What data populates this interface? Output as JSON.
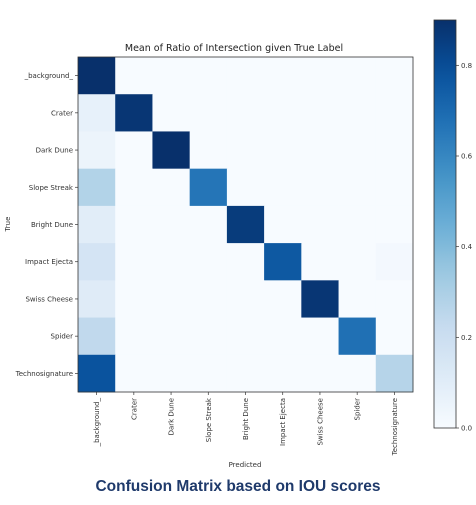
{
  "caption": "Confusion Matrix based on IOU scores",
  "chart_data": {
    "type": "heatmap",
    "title": "Mean of Ratio of Intersection given True Label",
    "xlabel": "Predicted",
    "ylabel": "True",
    "labels": [
      "_background_",
      "Crater",
      "Dark Dune",
      "Slope Streak",
      "Bright Dune",
      "Impact Ejecta",
      "Swiss Cheese",
      "Spider",
      "Technosignature"
    ],
    "matrix": [
      [
        0.92,
        0,
        0,
        0,
        0,
        0,
        0,
        0,
        0
      ],
      [
        0.07,
        0.88,
        0,
        0,
        0,
        0,
        0,
        0,
        0
      ],
      [
        0.05,
        0,
        0.93,
        0,
        0,
        0,
        0,
        0,
        0
      ],
      [
        0.28,
        0,
        0,
        0.66,
        0,
        0,
        0,
        0,
        0
      ],
      [
        0.1,
        0,
        0,
        0,
        0.86,
        0,
        0,
        0,
        0
      ],
      [
        0.16,
        0,
        0,
        0,
        0,
        0.76,
        0,
        0,
        0.02
      ],
      [
        0.11,
        0,
        0,
        0,
        0,
        0,
        0.88,
        0,
        0
      ],
      [
        0.24,
        0,
        0,
        0,
        0,
        0,
        0,
        0.68,
        0
      ],
      [
        0.78,
        0,
        0,
        0,
        0,
        0,
        0,
        0,
        0.27
      ]
    ],
    "colorbar": {
      "min": 0.0,
      "max": 0.9,
      "ticks": [
        0.0,
        0.2,
        0.4,
        0.6,
        0.8
      ],
      "tick_labels": [
        "0.0",
        "0.2",
        "0.4",
        "0.6",
        "0.8"
      ]
    },
    "colormap": [
      "#f7fbff",
      "#deebf7",
      "#c6dbef",
      "#9ecae1",
      "#6baed6",
      "#4292c6",
      "#2171b5",
      "#08519c",
      "#08306b"
    ]
  }
}
